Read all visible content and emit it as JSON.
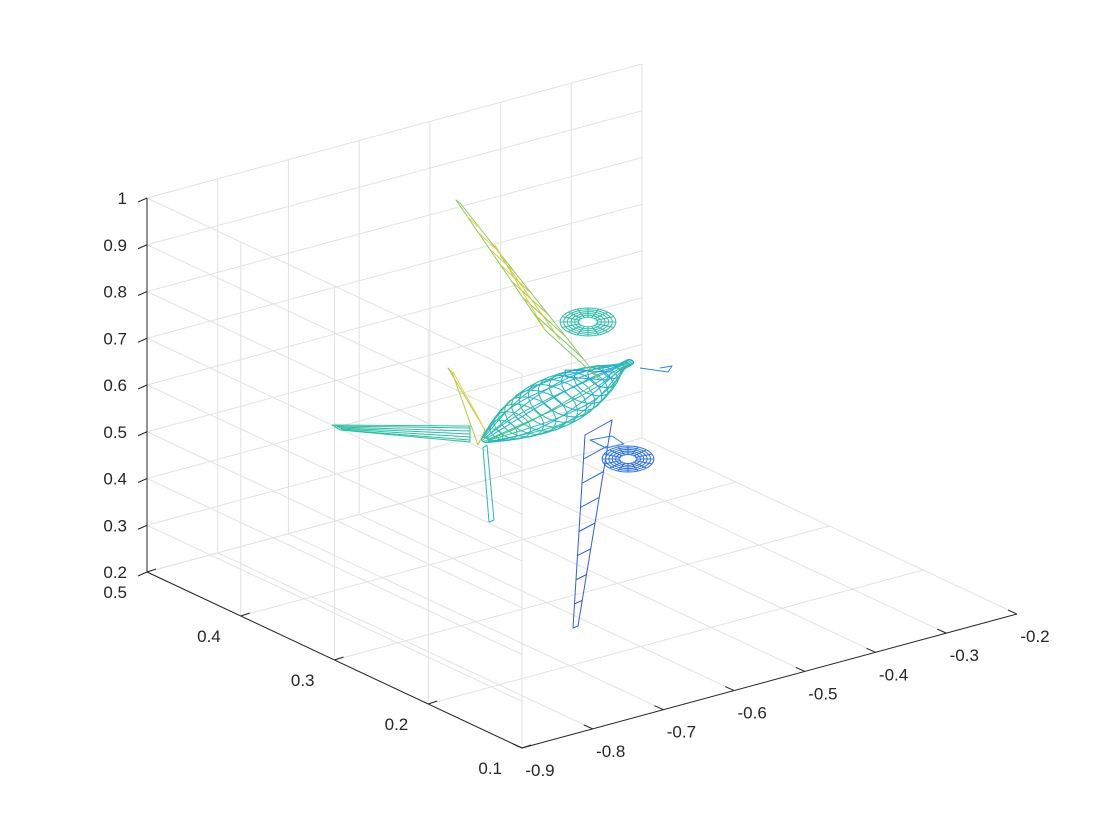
{
  "chart_data": {
    "type": "mesh3d",
    "title": "",
    "xlabel": "",
    "ylabel": "",
    "zlabel": "",
    "grid": true,
    "xlim": [
      -0.9,
      -0.2
    ],
    "ylim": [
      0.1,
      0.5
    ],
    "zlim": [
      0.2,
      1.0
    ],
    "x_ticks": [
      "-0.9",
      "-0.8",
      "-0.7",
      "-0.6",
      "-0.5",
      "-0.4",
      "-0.3",
      "-0.2"
    ],
    "y_ticks": [
      "0.1",
      "0.2",
      "0.3",
      "0.4",
      "0.5"
    ],
    "z_ticks": [
      "0.2",
      "0.3",
      "0.4",
      "0.5",
      "0.6",
      "0.7",
      "0.8",
      "0.9",
      "1"
    ],
    "colormap": [
      "#3e26a8",
      "#2f63e7",
      "#1dabe6",
      "#35c490",
      "#a8c94c",
      "#f2cb38",
      "#f9fb15"
    ],
    "object": "wireframe aircraft mesh"
  }
}
